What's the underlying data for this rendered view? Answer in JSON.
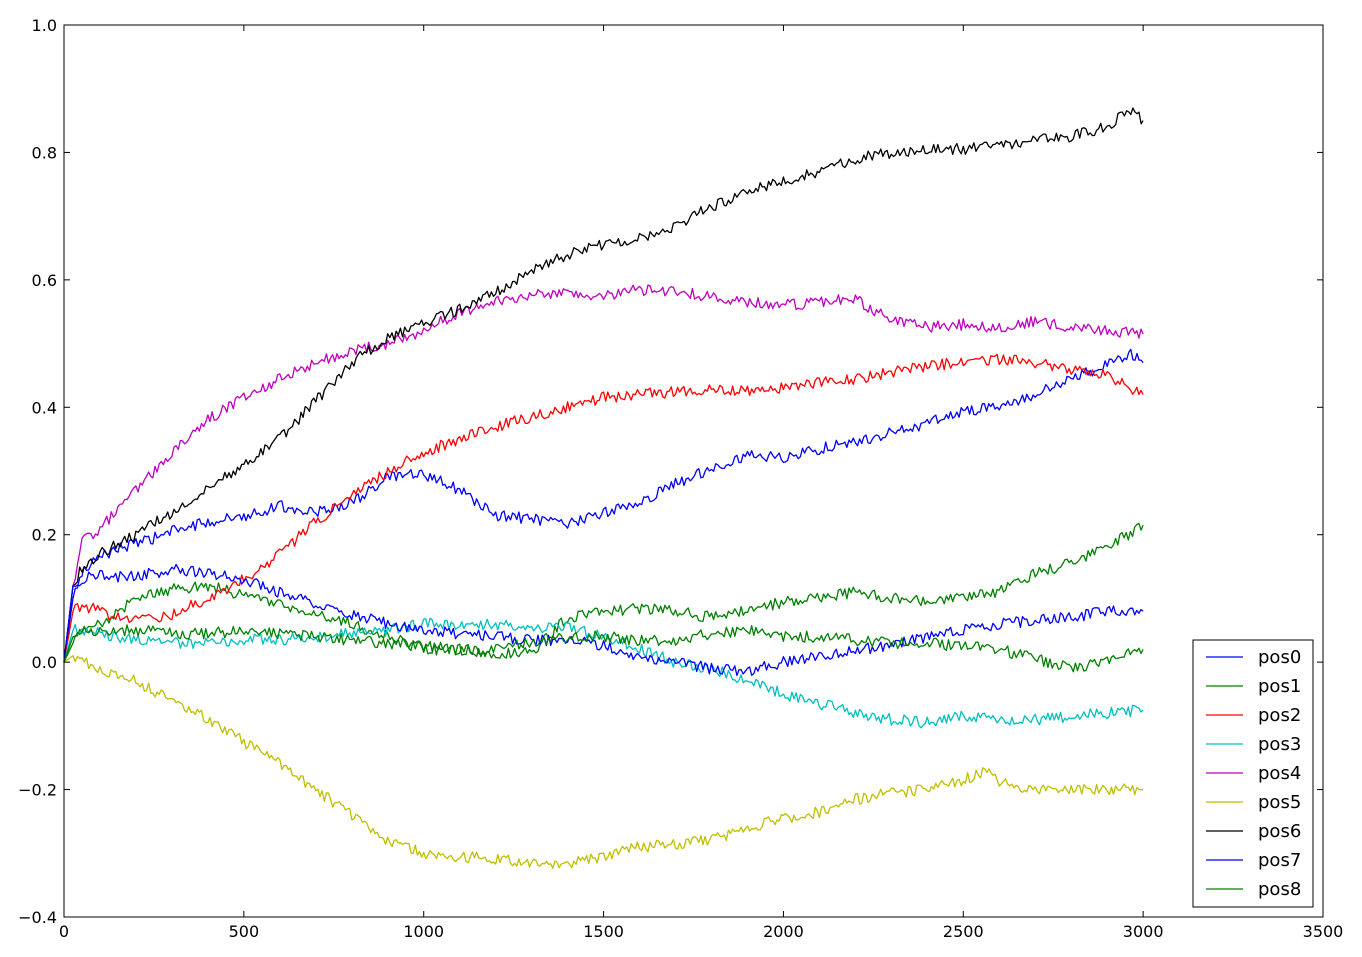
{
  "chart_data": {
    "type": "line",
    "title": "",
    "xlabel": "",
    "ylabel": "",
    "xlim": [
      0,
      3500
    ],
    "ylim": [
      -0.4,
      1.0
    ],
    "x_ticks": [
      0,
      500,
      1000,
      1500,
      2000,
      2500,
      3000,
      3500
    ],
    "x_tick_labels": [
      "0",
      "500",
      "1000",
      "1500",
      "2000",
      "2500",
      "3000",
      "3500"
    ],
    "y_ticks": [
      -0.4,
      -0.2,
      0.0,
      0.2,
      0.4,
      0.6,
      0.8,
      1.0
    ],
    "y_tick_labels": [
      "−0.4",
      "−0.2",
      "0.0",
      "0.2",
      "0.4",
      "0.6",
      "0.8",
      "1.0"
    ],
    "grid": false,
    "legend_position": "lower-right",
    "series": [
      {
        "name": "pos0",
        "color": "#0000ff",
        "x": [
          0,
          25,
          50,
          100,
          150,
          200,
          300,
          400,
          500,
          600,
          700,
          800,
          900,
          1000,
          1100,
          1200,
          1300,
          1400,
          1500,
          1600,
          1700,
          1800,
          1900,
          2000,
          2100,
          2200,
          2300,
          2400,
          2500,
          2600,
          2700,
          2800,
          2900,
          2960,
          3000
        ],
        "y": [
          0.0,
          0.1,
          0.14,
          0.165,
          0.18,
          0.185,
          0.205,
          0.22,
          0.23,
          0.245,
          0.235,
          0.25,
          0.29,
          0.295,
          0.27,
          0.23,
          0.225,
          0.215,
          0.235,
          0.25,
          0.28,
          0.305,
          0.325,
          0.32,
          0.335,
          0.345,
          0.36,
          0.375,
          0.395,
          0.4,
          0.42,
          0.445,
          0.465,
          0.485,
          0.47
        ]
      },
      {
        "name": "pos1",
        "color": "#008000",
        "x": [
          0,
          25,
          50,
          100,
          150,
          200,
          300,
          400,
          500,
          600,
          700,
          800,
          900,
          1000,
          1100,
          1200,
          1300,
          1400,
          1500,
          1600,
          1700,
          1800,
          1900,
          2000,
          2100,
          2200,
          2300,
          2400,
          2500,
          2600,
          2700,
          2800,
          2900,
          3000
        ],
        "y": [
          0.0,
          0.03,
          0.05,
          0.06,
          0.08,
          0.1,
          0.115,
          0.12,
          0.105,
          0.09,
          0.075,
          0.06,
          0.04,
          0.02,
          0.02,
          0.015,
          0.015,
          0.07,
          0.08,
          0.085,
          0.08,
          0.07,
          0.08,
          0.095,
          0.1,
          0.11,
          0.1,
          0.095,
          0.1,
          0.11,
          0.14,
          0.155,
          0.18,
          0.215
        ]
      },
      {
        "name": "pos2",
        "color": "#ff0000",
        "x": [
          0,
          25,
          50,
          100,
          150,
          200,
          300,
          400,
          500,
          600,
          700,
          800,
          900,
          1000,
          1100,
          1200,
          1300,
          1400,
          1500,
          1600,
          1700,
          1800,
          1900,
          2000,
          2100,
          2200,
          2300,
          2400,
          2500,
          2600,
          2700,
          2800,
          2900,
          3000
        ],
        "y": [
          0.0,
          0.08,
          0.09,
          0.08,
          0.07,
          0.065,
          0.075,
          0.1,
          0.13,
          0.17,
          0.22,
          0.26,
          0.3,
          0.33,
          0.35,
          0.37,
          0.385,
          0.4,
          0.415,
          0.42,
          0.425,
          0.43,
          0.425,
          0.43,
          0.44,
          0.445,
          0.455,
          0.465,
          0.47,
          0.475,
          0.47,
          0.46,
          0.45,
          0.42
        ]
      },
      {
        "name": "pos3",
        "color": "#00bfbf",
        "x": [
          0,
          25,
          50,
          100,
          150,
          200,
          300,
          400,
          500,
          600,
          700,
          800,
          900,
          1000,
          1100,
          1200,
          1300,
          1400,
          1500,
          1600,
          1700,
          1800,
          1900,
          2000,
          2100,
          2200,
          2300,
          2400,
          2500,
          2600,
          2700,
          2800,
          2900,
          3000
        ],
        "y": [
          0.0,
          0.05,
          0.05,
          0.045,
          0.04,
          0.035,
          0.03,
          0.03,
          0.035,
          0.035,
          0.04,
          0.045,
          0.05,
          0.06,
          0.06,
          0.06,
          0.055,
          0.055,
          0.04,
          0.02,
          0.0,
          -0.01,
          -0.03,
          -0.05,
          -0.065,
          -0.08,
          -0.09,
          -0.095,
          -0.085,
          -0.09,
          -0.09,
          -0.085,
          -0.08,
          -0.075
        ]
      },
      {
        "name": "pos4",
        "color": "#bf00bf",
        "x": [
          0,
          25,
          50,
          100,
          150,
          200,
          300,
          400,
          500,
          600,
          700,
          800,
          900,
          1000,
          1100,
          1200,
          1300,
          1400,
          1500,
          1600,
          1700,
          1800,
          1900,
          2000,
          2100,
          2200,
          2300,
          2400,
          2500,
          2600,
          2700,
          2800,
          2900,
          3000
        ],
        "y": [
          0.0,
          0.12,
          0.19,
          0.21,
          0.24,
          0.27,
          0.33,
          0.38,
          0.415,
          0.445,
          0.47,
          0.49,
          0.5,
          0.52,
          0.55,
          0.565,
          0.575,
          0.58,
          0.575,
          0.585,
          0.58,
          0.575,
          0.565,
          0.56,
          0.565,
          0.57,
          0.535,
          0.525,
          0.53,
          0.525,
          0.535,
          0.525,
          0.52,
          0.515
        ]
      },
      {
        "name": "pos5",
        "color": "#bfbf00",
        "x": [
          0,
          25,
          50,
          100,
          150,
          200,
          300,
          400,
          500,
          600,
          700,
          800,
          900,
          1000,
          1100,
          1200,
          1300,
          1400,
          1500,
          1600,
          1700,
          1800,
          1900,
          2000,
          2100,
          2200,
          2300,
          2400,
          2500,
          2560,
          2600,
          2700,
          2800,
          2900,
          3000
        ],
        "y": [
          0.0,
          0.01,
          0.0,
          -0.01,
          -0.02,
          -0.03,
          -0.06,
          -0.09,
          -0.125,
          -0.16,
          -0.2,
          -0.24,
          -0.28,
          -0.3,
          -0.305,
          -0.31,
          -0.315,
          -0.315,
          -0.305,
          -0.29,
          -0.285,
          -0.28,
          -0.26,
          -0.245,
          -0.235,
          -0.215,
          -0.205,
          -0.2,
          -0.185,
          -0.17,
          -0.19,
          -0.2,
          -0.2,
          -0.2,
          -0.2
        ]
      },
      {
        "name": "pos6",
        "color": "#000000",
        "x": [
          0,
          25,
          50,
          100,
          150,
          200,
          300,
          400,
          500,
          600,
          700,
          800,
          900,
          1000,
          1100,
          1200,
          1300,
          1400,
          1500,
          1600,
          1700,
          1800,
          1900,
          2000,
          2100,
          2200,
          2300,
          2400,
          2500,
          2600,
          2700,
          2800,
          2900,
          2960,
          3000
        ],
        "y": [
          0.0,
          0.12,
          0.15,
          0.17,
          0.185,
          0.2,
          0.235,
          0.275,
          0.31,
          0.35,
          0.41,
          0.47,
          0.51,
          0.53,
          0.555,
          0.58,
          0.615,
          0.64,
          0.655,
          0.665,
          0.685,
          0.715,
          0.74,
          0.755,
          0.77,
          0.79,
          0.8,
          0.805,
          0.805,
          0.81,
          0.82,
          0.825,
          0.84,
          0.87,
          0.85
        ]
      },
      {
        "name": "pos7",
        "color": "#0000ff",
        "x": [
          0,
          25,
          50,
          100,
          150,
          200,
          300,
          400,
          500,
          600,
          700,
          800,
          900,
          1000,
          1100,
          1200,
          1300,
          1400,
          1500,
          1600,
          1700,
          1800,
          1900,
          2000,
          2100,
          2200,
          2300,
          2400,
          2500,
          2600,
          2700,
          2800,
          2900,
          3000
        ],
        "y": [
          0.0,
          0.12,
          0.13,
          0.14,
          0.135,
          0.135,
          0.145,
          0.14,
          0.13,
          0.11,
          0.09,
          0.075,
          0.06,
          0.05,
          0.045,
          0.04,
          0.035,
          0.035,
          0.025,
          0.01,
          0.0,
          -0.01,
          -0.015,
          0.0,
          0.01,
          0.02,
          0.025,
          0.04,
          0.05,
          0.06,
          0.065,
          0.07,
          0.08,
          0.08
        ]
      },
      {
        "name": "pos8",
        "color": "#008000",
        "x": [
          0,
          25,
          50,
          100,
          150,
          200,
          300,
          400,
          500,
          600,
          700,
          800,
          900,
          1000,
          1100,
          1200,
          1300,
          1400,
          1500,
          1600,
          1700,
          1800,
          1900,
          2000,
          2100,
          2200,
          2300,
          2400,
          2500,
          2600,
          2700,
          2800,
          2900,
          3000
        ],
        "y": [
          0.0,
          0.04,
          0.05,
          0.05,
          0.05,
          0.05,
          0.045,
          0.045,
          0.05,
          0.045,
          0.04,
          0.035,
          0.03,
          0.025,
          0.02,
          0.02,
          0.03,
          0.04,
          0.04,
          0.035,
          0.035,
          0.045,
          0.05,
          0.04,
          0.04,
          0.035,
          0.03,
          0.03,
          0.025,
          0.02,
          0.005,
          -0.01,
          0.0,
          0.02
        ]
      }
    ]
  }
}
